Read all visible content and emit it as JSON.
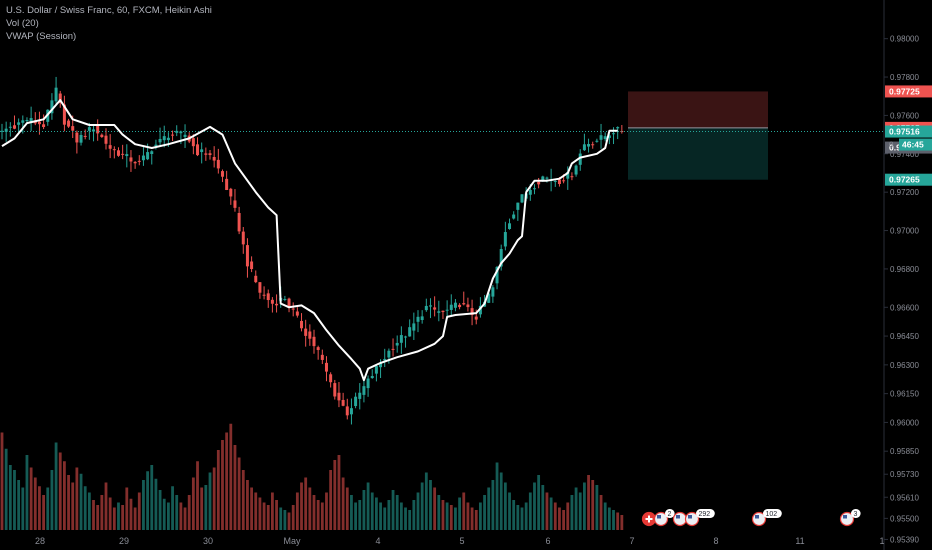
{
  "header": {
    "symbol_line": "U.S. Dollar / Swiss Franc, 60, FXCM, Heikin Ashi",
    "volume_line": "Vol (20)",
    "vwap_line": "VWAP (Session)"
  },
  "price_tags": {
    "stop_loss": "0.97725",
    "entry": "0.97535",
    "current": "0.97516",
    "countdown": "46:45",
    "vwap_value": "0.97495",
    "take_profit": "0.97265",
    "partial_hidden": "0"
  },
  "colors": {
    "background": "#000000",
    "bull": "#26a69a",
    "bear": "#ef5350",
    "vwap": "#ffffff",
    "stop_zone": "#3a1414",
    "target_zone": "#062624",
    "axis_text": "#8a8d96"
  },
  "events": [
    {
      "label": "2",
      "flags": "ch-us"
    },
    {
      "label": "292",
      "flags": "us-us"
    },
    {
      "label": "102",
      "flags": "us"
    },
    {
      "label": "3",
      "flags": "us"
    }
  ],
  "chart_data": {
    "type": "candlestick",
    "title": "U.S. Dollar / Swiss Franc, 60, FXCM, Heikin Ashi",
    "xlabel": "",
    "ylabel": "",
    "ylim": [
      0.95333,
      0.98065
    ],
    "y_ticks": [
      "0.98000",
      "0.97800",
      "0.97600",
      "0.97400",
      "0.97200",
      "0.97000",
      "0.96800",
      "0.96600",
      "0.96450",
      "0.96300",
      "0.96150",
      "0.96000",
      "0.95850",
      "0.95730",
      "0.95610",
      "0.95500",
      "0.95390"
    ],
    "x_tick_labels": [
      "28",
      "29",
      "30",
      "May",
      "4",
      "5",
      "6",
      "7",
      "8",
      "11",
      "1"
    ],
    "grid": false,
    "legend": "top-left",
    "price_path": {
      "series": "Heikin Ashi close (approx.)",
      "points": [
        {
          "bar": 0,
          "close": 0.9752
        },
        {
          "bar": 6,
          "close": 0.9758
        },
        {
          "bar": 10,
          "close": 0.9755
        },
        {
          "bar": 13,
          "close": 0.9773
        },
        {
          "bar": 15,
          "close": 0.9757
        },
        {
          "bar": 18,
          "close": 0.9747
        },
        {
          "bar": 22,
          "close": 0.9754
        },
        {
          "bar": 26,
          "close": 0.9743
        },
        {
          "bar": 30,
          "close": 0.9738
        },
        {
          "bar": 33,
          "close": 0.9735
        },
        {
          "bar": 36,
          "close": 0.9743
        },
        {
          "bar": 40,
          "close": 0.975
        },
        {
          "bar": 44,
          "close": 0.975
        },
        {
          "bar": 47,
          "close": 0.9741
        },
        {
          "bar": 50,
          "close": 0.974
        },
        {
          "bar": 53,
          "close": 0.9728
        },
        {
          "bar": 56,
          "close": 0.971
        },
        {
          "bar": 59,
          "close": 0.9683
        },
        {
          "bar": 62,
          "close": 0.9668
        },
        {
          "bar": 65,
          "close": 0.9662
        },
        {
          "bar": 68,
          "close": 0.9665
        },
        {
          "bar": 72,
          "close": 0.965
        },
        {
          "bar": 76,
          "close": 0.9637
        },
        {
          "bar": 80,
          "close": 0.9615
        },
        {
          "bar": 83,
          "close": 0.9605
        },
        {
          "bar": 86,
          "close": 0.9615
        },
        {
          "bar": 90,
          "close": 0.9628
        },
        {
          "bar": 94,
          "close": 0.964
        },
        {
          "bar": 98,
          "close": 0.9648
        },
        {
          "bar": 102,
          "close": 0.966
        },
        {
          "bar": 106,
          "close": 0.9657
        },
        {
          "bar": 110,
          "close": 0.9662
        },
        {
          "bar": 114,
          "close": 0.9655
        },
        {
          "bar": 118,
          "close": 0.967
        },
        {
          "bar": 121,
          "close": 0.97
        },
        {
          "bar": 124,
          "close": 0.9715
        },
        {
          "bar": 127,
          "close": 0.9722
        },
        {
          "bar": 130,
          "close": 0.9728
        },
        {
          "bar": 134,
          "close": 0.9726
        },
        {
          "bar": 137,
          "close": 0.973
        },
        {
          "bar": 140,
          "close": 0.9745
        },
        {
          "bar": 144,
          "close": 0.9748
        },
        {
          "bar": 147,
          "close": 0.9752
        },
        {
          "bar": 150,
          "close": 0.9752
        }
      ]
    },
    "vwap": {
      "name": "VWAP (Session)",
      "points": [
        {
          "bar": 0,
          "value": 0.9744
        },
        {
          "bar": 3,
          "value": 0.9748
        },
        {
          "bar": 6,
          "value": 0.9756
        },
        {
          "bar": 10,
          "value": 0.9758
        },
        {
          "bar": 14,
          "value": 0.9768
        },
        {
          "bar": 17,
          "value": 0.9758
        },
        {
          "bar": 21,
          "value": 0.9755
        },
        {
          "bar": 27,
          "value": 0.9755
        },
        {
          "bar": 29,
          "value": 0.975
        },
        {
          "bar": 32,
          "value": 0.9745
        },
        {
          "bar": 36,
          "value": 0.9743
        },
        {
          "bar": 40,
          "value": 0.9745
        },
        {
          "bar": 45,
          "value": 0.9748
        },
        {
          "bar": 50,
          "value": 0.9754
        },
        {
          "bar": 53,
          "value": 0.975
        },
        {
          "bar": 56,
          "value": 0.9735
        },
        {
          "bar": 61,
          "value": 0.972
        },
        {
          "bar": 64,
          "value": 0.9712
        },
        {
          "bar": 66,
          "value": 0.9708
        },
        {
          "bar": 67,
          "value": 0.9662
        },
        {
          "bar": 69,
          "value": 0.966
        },
        {
          "bar": 72,
          "value": 0.9661
        },
        {
          "bar": 75,
          "value": 0.9657
        },
        {
          "bar": 78,
          "value": 0.9648
        },
        {
          "bar": 81,
          "value": 0.964
        },
        {
          "bar": 84,
          "value": 0.9633
        },
        {
          "bar": 86,
          "value": 0.9628
        },
        {
          "bar": 87,
          "value": 0.9622
        },
        {
          "bar": 88,
          "value": 0.9628
        },
        {
          "bar": 91,
          "value": 0.9631
        },
        {
          "bar": 95,
          "value": 0.9634
        },
        {
          "bar": 100,
          "value": 0.9637
        },
        {
          "bar": 104,
          "value": 0.9641
        },
        {
          "bar": 106,
          "value": 0.9645
        },
        {
          "bar": 107,
          "value": 0.9655
        },
        {
          "bar": 109,
          "value": 0.9656
        },
        {
          "bar": 114,
          "value": 0.9657
        },
        {
          "bar": 116,
          "value": 0.9662
        },
        {
          "bar": 118,
          "value": 0.9675
        },
        {
          "bar": 120,
          "value": 0.9683
        },
        {
          "bar": 122,
          "value": 0.9688
        },
        {
          "bar": 124,
          "value": 0.9695
        },
        {
          "bar": 125,
          "value": 0.9697
        },
        {
          "bar": 126,
          "value": 0.972
        },
        {
          "bar": 128,
          "value": 0.9726
        },
        {
          "bar": 131,
          "value": 0.9726
        },
        {
          "bar": 134,
          "value": 0.9727
        },
        {
          "bar": 136,
          "value": 0.973
        },
        {
          "bar": 137,
          "value": 0.9735
        },
        {
          "bar": 139,
          "value": 0.9738
        },
        {
          "bar": 143,
          "value": 0.974
        },
        {
          "bar": 145,
          "value": 0.9743
        },
        {
          "bar": 146,
          "value": 0.9752
        },
        {
          "bar": 148,
          "value": 0.9752
        }
      ]
    },
    "volume": {
      "name": "Vol (20)",
      "values": [
        78,
        65,
        52,
        48,
        40,
        34,
        60,
        50,
        42,
        35,
        28,
        34,
        48,
        70,
        62,
        55,
        44,
        38,
        50,
        45,
        35,
        30,
        24,
        20,
        28,
        38,
        26,
        18,
        22,
        20,
        34,
        25,
        18,
        30,
        40,
        47,
        52,
        41,
        32,
        25,
        22,
        35,
        28,
        22,
        18,
        28,
        42,
        55,
        34,
        36,
        46,
        50,
        64,
        72,
        78,
        85,
        68,
        58,
        48,
        40,
        34,
        30,
        26,
        22,
        20,
        30,
        24,
        18,
        16,
        14,
        20,
        30,
        38,
        42,
        34,
        28,
        24,
        22,
        30,
        48,
        56,
        60,
        42,
        34,
        28,
        22,
        24,
        32,
        38,
        30,
        26,
        22,
        18,
        24,
        32,
        28,
        22,
        18,
        16,
        24,
        30,
        38,
        46,
        40,
        34,
        28,
        24,
        22,
        20,
        18,
        26,
        30,
        22,
        18,
        16,
        22,
        28,
        34,
        40,
        54,
        46,
        38,
        30,
        24,
        20,
        18,
        22,
        30,
        38,
        44,
        36,
        30,
        26,
        22,
        18,
        16,
        22,
        28,
        34,
        30,
        38,
        44,
        40,
        36,
        28,
        22,
        18,
        16,
        14,
        12
      ]
    },
    "position": {
      "stop_loss": 0.97725,
      "entry": 0.97535,
      "take_profit": 0.97265
    },
    "current_price": 0.97516,
    "vwap_last": 0.97495
  }
}
